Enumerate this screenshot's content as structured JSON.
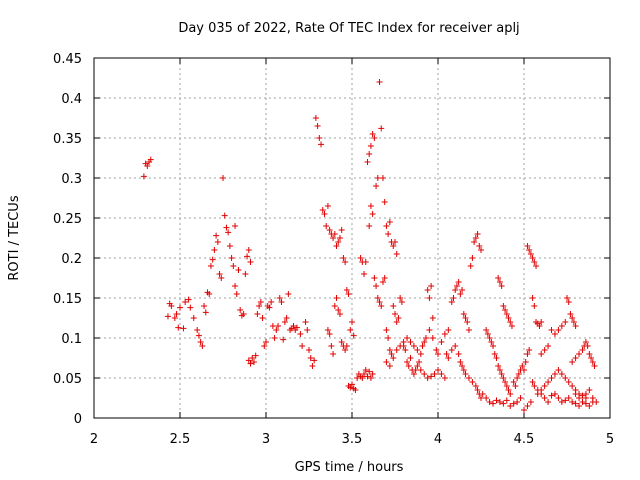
{
  "chart_data": {
    "type": "scatter",
    "title": "Day 035 of 2022, Rate Of TEC Index for receiver aplj",
    "xlabel": "GPS time / hours",
    "ylabel": "ROTI / TECUs",
    "xlim": [
      2,
      5
    ],
    "ylim": [
      0,
      0.45
    ],
    "x_ticks": [
      "2",
      "2.5",
      "3",
      "3.5",
      "4",
      "4.5",
      "5"
    ],
    "y_ticks": [
      "0",
      "0.05",
      "0.1",
      "0.15",
      "0.2",
      "0.25",
      "0.3",
      "0.35",
      "0.4",
      "0.45"
    ],
    "grid": true,
    "legend": "none",
    "marker": "plus",
    "colors": {
      "points": "#e00000",
      "grid": "#a0a0a0",
      "axes": "#000000"
    },
    "points": [
      [
        2.29,
        0.302
      ],
      [
        2.3,
        0.318
      ],
      [
        2.31,
        0.315
      ],
      [
        2.32,
        0.32
      ],
      [
        2.33,
        0.323
      ],
      [
        2.43,
        0.127
      ],
      [
        2.44,
        0.143
      ],
      [
        2.45,
        0.14
      ],
      [
        2.47,
        0.125
      ],
      [
        2.48,
        0.13
      ],
      [
        2.49,
        0.113
      ],
      [
        2.5,
        0.138
      ],
      [
        2.52,
        0.112
      ],
      [
        2.53,
        0.145
      ],
      [
        2.55,
        0.148
      ],
      [
        2.56,
        0.138
      ],
      [
        2.58,
        0.125
      ],
      [
        2.6,
        0.11
      ],
      [
        2.61,
        0.103
      ],
      [
        2.62,
        0.095
      ],
      [
        2.63,
        0.09
      ],
      [
        2.64,
        0.14
      ],
      [
        2.65,
        0.132
      ],
      [
        2.66,
        0.157
      ],
      [
        2.67,
        0.155
      ],
      [
        2.68,
        0.19
      ],
      [
        2.69,
        0.198
      ],
      [
        2.7,
        0.21
      ],
      [
        2.71,
        0.228
      ],
      [
        2.72,
        0.22
      ],
      [
        2.73,
        0.18
      ],
      [
        2.74,
        0.175
      ],
      [
        2.75,
        0.3
      ],
      [
        2.76,
        0.253
      ],
      [
        2.77,
        0.238
      ],
      [
        2.78,
        0.232
      ],
      [
        2.79,
        0.215
      ],
      [
        2.8,
        0.2
      ],
      [
        2.81,
        0.19
      ],
      [
        2.82,
        0.24
      ],
      [
        2.82,
        0.165
      ],
      [
        2.83,
        0.155
      ],
      [
        2.84,
        0.185
      ],
      [
        2.85,
        0.135
      ],
      [
        2.86,
        0.128
      ],
      [
        2.87,
        0.13
      ],
      [
        2.88,
        0.18
      ],
      [
        2.89,
        0.202
      ],
      [
        2.9,
        0.21
      ],
      [
        2.91,
        0.195
      ],
      [
        2.9,
        0.072
      ],
      [
        2.91,
        0.068
      ],
      [
        2.92,
        0.075
      ],
      [
        2.93,
        0.07
      ],
      [
        2.94,
        0.078
      ],
      [
        2.95,
        0.13
      ],
      [
        2.96,
        0.14
      ],
      [
        2.97,
        0.145
      ],
      [
        2.98,
        0.125
      ],
      [
        2.99,
        0.09
      ],
      [
        3.0,
        0.095
      ],
      [
        3.01,
        0.14
      ],
      [
        3.02,
        0.138
      ],
      [
        3.03,
        0.145
      ],
      [
        3.04,
        0.115
      ],
      [
        3.05,
        0.1
      ],
      [
        3.06,
        0.11
      ],
      [
        3.07,
        0.115
      ],
      [
        3.08,
        0.15
      ],
      [
        3.09,
        0.145
      ],
      [
        3.1,
        0.098
      ],
      [
        3.11,
        0.12
      ],
      [
        3.12,
        0.125
      ],
      [
        3.13,
        0.155
      ],
      [
        3.14,
        0.11
      ],
      [
        3.15,
        0.112
      ],
      [
        3.16,
        0.115
      ],
      [
        3.17,
        0.11
      ],
      [
        3.18,
        0.113
      ],
      [
        3.2,
        0.105
      ],
      [
        3.21,
        0.09
      ],
      [
        3.23,
        0.12
      ],
      [
        3.24,
        0.11
      ],
      [
        3.25,
        0.085
      ],
      [
        3.26,
        0.075
      ],
      [
        3.27,
        0.065
      ],
      [
        3.28,
        0.072
      ],
      [
        3.29,
        0.375
      ],
      [
        3.3,
        0.365
      ],
      [
        3.31,
        0.35
      ],
      [
        3.32,
        0.342
      ],
      [
        3.33,
        0.26
      ],
      [
        3.34,
        0.255
      ],
      [
        3.35,
        0.24
      ],
      [
        3.36,
        0.265
      ],
      [
        3.37,
        0.235
      ],
      [
        3.38,
        0.23
      ],
      [
        3.39,
        0.225
      ],
      [
        3.4,
        0.23
      ],
      [
        3.41,
        0.215
      ],
      [
        3.42,
        0.22
      ],
      [
        3.43,
        0.225
      ],
      [
        3.44,
        0.235
      ],
      [
        3.45,
        0.2
      ],
      [
        3.46,
        0.195
      ],
      [
        3.47,
        0.16
      ],
      [
        3.48,
        0.155
      ],
      [
        3.49,
        0.11
      ],
      [
        3.5,
        0.12
      ],
      [
        3.51,
        0.103
      ],
      [
        3.36,
        0.11
      ],
      [
        3.37,
        0.105
      ],
      [
        3.38,
        0.09
      ],
      [
        3.39,
        0.08
      ],
      [
        3.4,
        0.14
      ],
      [
        3.41,
        0.15
      ],
      [
        3.42,
        0.135
      ],
      [
        3.43,
        0.13
      ],
      [
        3.44,
        0.095
      ],
      [
        3.45,
        0.09
      ],
      [
        3.46,
        0.085
      ],
      [
        3.47,
        0.09
      ],
      [
        3.48,
        0.04
      ],
      [
        3.49,
        0.038
      ],
      [
        3.5,
        0.042
      ],
      [
        3.51,
        0.037
      ],
      [
        3.52,
        0.035
      ],
      [
        3.53,
        0.05
      ],
      [
        3.54,
        0.055
      ],
      [
        3.55,
        0.052
      ],
      [
        3.56,
        0.05
      ],
      [
        3.57,
        0.055
      ],
      [
        3.58,
        0.06
      ],
      [
        3.59,
        0.052
      ],
      [
        3.6,
        0.058
      ],
      [
        3.61,
        0.05
      ],
      [
        3.62,
        0.055
      ],
      [
        3.55,
        0.2
      ],
      [
        3.56,
        0.195
      ],
      [
        3.57,
        0.18
      ],
      [
        3.58,
        0.195
      ],
      [
        3.59,
        0.32
      ],
      [
        3.6,
        0.33
      ],
      [
        3.61,
        0.34
      ],
      [
        3.62,
        0.355
      ],
      [
        3.63,
        0.35
      ],
      [
        3.64,
        0.29
      ],
      [
        3.65,
        0.3
      ],
      [
        3.66,
        0.42
      ],
      [
        3.67,
        0.362
      ],
      [
        3.68,
        0.3
      ],
      [
        3.69,
        0.27
      ],
      [
        3.7,
        0.24
      ],
      [
        3.71,
        0.23
      ],
      [
        3.72,
        0.245
      ],
      [
        3.73,
        0.22
      ],
      [
        3.74,
        0.215
      ],
      [
        3.75,
        0.22
      ],
      [
        3.76,
        0.205
      ],
      [
        3.6,
        0.24
      ],
      [
        3.61,
        0.265
      ],
      [
        3.62,
        0.255
      ],
      [
        3.63,
        0.175
      ],
      [
        3.64,
        0.165
      ],
      [
        3.65,
        0.15
      ],
      [
        3.66,
        0.145
      ],
      [
        3.67,
        0.14
      ],
      [
        3.68,
        0.17
      ],
      [
        3.69,
        0.175
      ],
      [
        3.7,
        0.11
      ],
      [
        3.71,
        0.1
      ],
      [
        3.72,
        0.085
      ],
      [
        3.73,
        0.08
      ],
      [
        3.74,
        0.14
      ],
      [
        3.75,
        0.13
      ],
      [
        3.76,
        0.12
      ],
      [
        3.77,
        0.125
      ],
      [
        3.78,
        0.15
      ],
      [
        3.79,
        0.145
      ],
      [
        3.8,
        0.09
      ],
      [
        3.81,
        0.085
      ],
      [
        3.82,
        0.07
      ],
      [
        3.83,
        0.065
      ],
      [
        3.84,
        0.075
      ],
      [
        3.85,
        0.06
      ],
      [
        3.86,
        0.055
      ],
      [
        3.87,
        0.06
      ],
      [
        3.88,
        0.065
      ],
      [
        3.89,
        0.07
      ],
      [
        3.9,
        0.08
      ],
      [
        3.91,
        0.09
      ],
      [
        3.92,
        0.095
      ],
      [
        3.93,
        0.1
      ],
      [
        3.94,
        0.16
      ],
      [
        3.95,
        0.15
      ],
      [
        3.96,
        0.165
      ],
      [
        3.97,
        0.125
      ],
      [
        3.7,
        0.07
      ],
      [
        3.72,
        0.065
      ],
      [
        3.74,
        0.075
      ],
      [
        3.76,
        0.085
      ],
      [
        3.78,
        0.09
      ],
      [
        3.8,
        0.095
      ],
      [
        3.82,
        0.1
      ],
      [
        3.84,
        0.095
      ],
      [
        3.86,
        0.09
      ],
      [
        3.88,
        0.085
      ],
      [
        3.9,
        0.06
      ],
      [
        3.92,
        0.055
      ],
      [
        3.94,
        0.05
      ],
      [
        3.96,
        0.052
      ],
      [
        3.98,
        0.055
      ],
      [
        4.0,
        0.06
      ],
      [
        4.02,
        0.055
      ],
      [
        4.04,
        0.05
      ],
      [
        3.95,
        0.11
      ],
      [
        3.97,
        0.1
      ],
      [
        3.99,
        0.085
      ],
      [
        4.0,
        0.08
      ],
      [
        4.02,
        0.095
      ],
      [
        4.04,
        0.105
      ],
      [
        4.06,
        0.11
      ],
      [
        4.08,
        0.145
      ],
      [
        4.09,
        0.15
      ],
      [
        4.1,
        0.16
      ],
      [
        4.11,
        0.165
      ],
      [
        4.12,
        0.17
      ],
      [
        4.13,
        0.155
      ],
      [
        4.14,
        0.16
      ],
      [
        4.15,
        0.13
      ],
      [
        4.16,
        0.125
      ],
      [
        4.17,
        0.12
      ],
      [
        4.18,
        0.11
      ],
      [
        4.19,
        0.19
      ],
      [
        4.2,
        0.2
      ],
      [
        4.21,
        0.22
      ],
      [
        4.22,
        0.225
      ],
      [
        4.23,
        0.23
      ],
      [
        4.24,
        0.215
      ],
      [
        4.25,
        0.21
      ],
      [
        4.05,
        0.08
      ],
      [
        4.06,
        0.075
      ],
      [
        4.08,
        0.085
      ],
      [
        4.1,
        0.09
      ],
      [
        4.12,
        0.08
      ],
      [
        4.13,
        0.07
      ],
      [
        4.14,
        0.065
      ],
      [
        4.15,
        0.06
      ],
      [
        4.16,
        0.055
      ],
      [
        4.18,
        0.05
      ],
      [
        4.2,
        0.045
      ],
      [
        4.22,
        0.04
      ],
      [
        4.23,
        0.035
      ],
      [
        4.24,
        0.03
      ],
      [
        4.25,
        0.025
      ],
      [
        4.26,
        0.03
      ],
      [
        4.28,
        0.025
      ],
      [
        4.3,
        0.02
      ],
      [
        4.32,
        0.018
      ],
      [
        4.34,
        0.022
      ],
      [
        4.28,
        0.11
      ],
      [
        4.29,
        0.105
      ],
      [
        4.3,
        0.1
      ],
      [
        4.31,
        0.095
      ],
      [
        4.32,
        0.09
      ],
      [
        4.33,
        0.08
      ],
      [
        4.34,
        0.075
      ],
      [
        4.35,
        0.065
      ],
      [
        4.36,
        0.06
      ],
      [
        4.37,
        0.055
      ],
      [
        4.38,
        0.05
      ],
      [
        4.39,
        0.045
      ],
      [
        4.4,
        0.04
      ],
      [
        4.41,
        0.035
      ],
      [
        4.42,
        0.03
      ],
      [
        4.35,
        0.175
      ],
      [
        4.36,
        0.17
      ],
      [
        4.37,
        0.165
      ],
      [
        4.38,
        0.14
      ],
      [
        4.39,
        0.135
      ],
      [
        4.4,
        0.13
      ],
      [
        4.41,
        0.125
      ],
      [
        4.42,
        0.12
      ],
      [
        4.43,
        0.115
      ],
      [
        4.36,
        0.02
      ],
      [
        4.38,
        0.018
      ],
      [
        4.4,
        0.022
      ],
      [
        4.42,
        0.015
      ],
      [
        4.44,
        0.018
      ],
      [
        4.46,
        0.02
      ],
      [
        4.48,
        0.025
      ],
      [
        4.5,
        0.01
      ],
      [
        4.52,
        0.015
      ],
      [
        4.54,
        0.02
      ],
      [
        4.44,
        0.045
      ],
      [
        4.45,
        0.04
      ],
      [
        4.46,
        0.05
      ],
      [
        4.47,
        0.055
      ],
      [
        4.48,
        0.06
      ],
      [
        4.49,
        0.065
      ],
      [
        4.5,
        0.06
      ],
      [
        4.51,
        0.07
      ],
      [
        4.52,
        0.08
      ],
      [
        4.53,
        0.085
      ],
      [
        4.52,
        0.215
      ],
      [
        4.53,
        0.21
      ],
      [
        4.54,
        0.205
      ],
      [
        4.55,
        0.2
      ],
      [
        4.56,
        0.195
      ],
      [
        4.57,
        0.19
      ],
      [
        4.55,
        0.15
      ],
      [
        4.56,
        0.14
      ],
      [
        4.57,
        0.12
      ],
      [
        4.58,
        0.118
      ],
      [
        4.59,
        0.115
      ],
      [
        4.6,
        0.12
      ],
      [
        4.55,
        0.045
      ],
      [
        4.56,
        0.04
      ],
      [
        4.58,
        0.035
      ],
      [
        4.6,
        0.03
      ],
      [
        4.62,
        0.025
      ],
      [
        4.64,
        0.02
      ],
      [
        4.66,
        0.028
      ],
      [
        4.68,
        0.03
      ],
      [
        4.7,
        0.025
      ],
      [
        4.72,
        0.02
      ],
      [
        4.74,
        0.022
      ],
      [
        4.76,
        0.025
      ],
      [
        4.78,
        0.02
      ],
      [
        4.8,
        0.018
      ],
      [
        4.82,
        0.015
      ],
      [
        4.84,
        0.02
      ],
      [
        4.86,
        0.018
      ],
      [
        4.88,
        0.015
      ],
      [
        4.9,
        0.02
      ],
      [
        4.58,
        0.03
      ],
      [
        4.6,
        0.035
      ],
      [
        4.62,
        0.04
      ],
      [
        4.64,
        0.045
      ],
      [
        4.66,
        0.05
      ],
      [
        4.68,
        0.055
      ],
      [
        4.7,
        0.06
      ],
      [
        4.72,
        0.055
      ],
      [
        4.74,
        0.05
      ],
      [
        4.76,
        0.045
      ],
      [
        4.78,
        0.04
      ],
      [
        4.8,
        0.035
      ],
      [
        4.82,
        0.03
      ],
      [
        4.84,
        0.028
      ],
      [
        4.86,
        0.025
      ],
      [
        4.6,
        0.08
      ],
      [
        4.62,
        0.085
      ],
      [
        4.64,
        0.09
      ],
      [
        4.66,
        0.11
      ],
      [
        4.68,
        0.105
      ],
      [
        4.7,
        0.11
      ],
      [
        4.72,
        0.115
      ],
      [
        4.74,
        0.12
      ],
      [
        4.75,
        0.15
      ],
      [
        4.76,
        0.145
      ],
      [
        4.77,
        0.13
      ],
      [
        4.78,
        0.125
      ],
      [
        4.79,
        0.12
      ],
      [
        4.8,
        0.115
      ],
      [
        4.78,
        0.07
      ],
      [
        4.8,
        0.075
      ],
      [
        4.82,
        0.08
      ],
      [
        4.84,
        0.085
      ],
      [
        4.85,
        0.09
      ],
      [
        4.86,
        0.095
      ],
      [
        4.87,
        0.09
      ],
      [
        4.88,
        0.08
      ],
      [
        4.89,
        0.075
      ],
      [
        4.9,
        0.07
      ],
      [
        4.91,
        0.065
      ],
      [
        4.8,
        0.03
      ],
      [
        4.82,
        0.025
      ],
      [
        4.84,
        0.02
      ],
      [
        4.86,
        0.03
      ],
      [
        4.88,
        0.035
      ],
      [
        4.9,
        0.025
      ],
      [
        4.92,
        0.02
      ]
    ]
  }
}
